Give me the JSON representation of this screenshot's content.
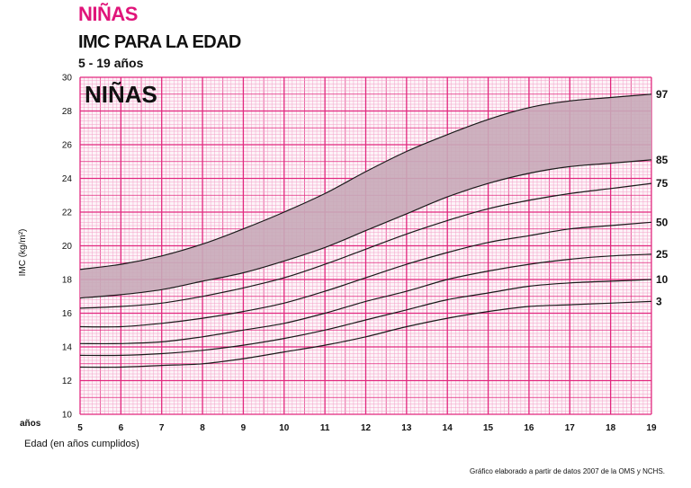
{
  "header": {
    "title": "NIÑAS",
    "subtitle": "IMC PARA LA EDAD",
    "range": "5 - 19 años"
  },
  "chart_data": {
    "type": "line",
    "title": "NIÑAS",
    "ylabel": "IMC (kg/m²)",
    "xlabel": "Edad (en años cumplidos)",
    "x_unit_label": "años",
    "xlim": [
      5,
      19
    ],
    "ylim": [
      10,
      30
    ],
    "x_ticks": [
      5,
      6,
      7,
      8,
      9,
      10,
      11,
      12,
      13,
      14,
      15,
      16,
      17,
      18,
      19
    ],
    "y_ticks": [
      10,
      12,
      14,
      16,
      18,
      20,
      22,
      24,
      26,
      28,
      30
    ],
    "grid": true,
    "shaded_band": [
      "85",
      "97"
    ],
    "x": [
      5,
      6,
      7,
      8,
      9,
      10,
      11,
      12,
      13,
      14,
      15,
      16,
      17,
      18,
      19
    ],
    "series": [
      {
        "name": "3",
        "values": [
          12.8,
          12.8,
          12.9,
          13.0,
          13.3,
          13.7,
          14.1,
          14.6,
          15.2,
          15.7,
          16.1,
          16.4,
          16.5,
          16.6,
          16.7
        ]
      },
      {
        "name": "10",
        "values": [
          13.5,
          13.5,
          13.6,
          13.8,
          14.1,
          14.5,
          15.0,
          15.6,
          16.2,
          16.8,
          17.2,
          17.6,
          17.8,
          17.9,
          18.0
        ]
      },
      {
        "name": "25",
        "values": [
          14.2,
          14.2,
          14.3,
          14.6,
          15.0,
          15.4,
          16.0,
          16.7,
          17.3,
          18.0,
          18.5,
          18.9,
          19.2,
          19.4,
          19.5
        ]
      },
      {
        "name": "50",
        "values": [
          15.2,
          15.2,
          15.4,
          15.7,
          16.1,
          16.6,
          17.3,
          18.1,
          18.9,
          19.6,
          20.2,
          20.6,
          21.0,
          21.2,
          21.4
        ]
      },
      {
        "name": "75",
        "values": [
          16.3,
          16.4,
          16.6,
          17.0,
          17.5,
          18.1,
          18.9,
          19.8,
          20.7,
          21.5,
          22.2,
          22.7,
          23.1,
          23.4,
          23.7
        ]
      },
      {
        "name": "85",
        "values": [
          16.9,
          17.1,
          17.4,
          17.9,
          18.4,
          19.1,
          19.9,
          20.9,
          21.9,
          22.9,
          23.7,
          24.3,
          24.7,
          24.9,
          25.1
        ]
      },
      {
        "name": "97",
        "values": [
          18.6,
          18.9,
          19.4,
          20.1,
          21.0,
          22.0,
          23.1,
          24.4,
          25.6,
          26.6,
          27.5,
          28.2,
          28.6,
          28.8,
          29.0
        ]
      }
    ]
  },
  "footer": {
    "source": "Gráfico elaborado a partir de datos 2007 de la OMS y NCHS."
  },
  "colors": {
    "brand": "#e0147a",
    "grid_minor": "#f3a0c8",
    "grid_major": "#e2287f",
    "band_fill": "#c8aab8"
  }
}
